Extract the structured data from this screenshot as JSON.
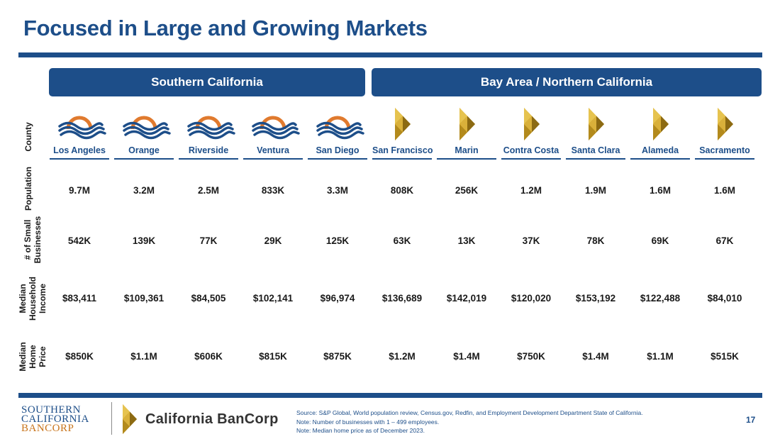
{
  "title": "Focused in Large and Growing Markets",
  "regions": {
    "southern": "Southern California",
    "northern": "Bay Area / Northern California"
  },
  "row_labels": {
    "county": "County",
    "population": "Population",
    "small_businesses_line1": "# of Small",
    "small_businesses_line2": "Businesses",
    "income_line1": "Median",
    "income_line2": "Household",
    "income_line3": "Income",
    "home_line1": "Median",
    "home_line2": "Home",
    "home_line3": "Price"
  },
  "counties": [
    {
      "name": "Los Angeles",
      "region": "southern",
      "population": "9.7M",
      "small_businesses": "542K",
      "median_income": "$83,411",
      "median_home_price": "$850K"
    },
    {
      "name": "Orange",
      "region": "southern",
      "population": "3.2M",
      "small_businesses": "139K",
      "median_income": "$109,361",
      "median_home_price": "$1.1M"
    },
    {
      "name": "Riverside",
      "region": "southern",
      "population": "2.5M",
      "small_businesses": "77K",
      "median_income": "$84,505",
      "median_home_price": "$606K"
    },
    {
      "name": "Ventura",
      "region": "southern",
      "population": "833K",
      "small_businesses": "29K",
      "median_income": "$102,141",
      "median_home_price": "$815K"
    },
    {
      "name": "San Diego",
      "region": "southern",
      "population": "3.3M",
      "small_businesses": "125K",
      "median_income": "$96,974",
      "median_home_price": "$875K"
    },
    {
      "name": "San Francisco",
      "region": "northern",
      "population": "808K",
      "small_businesses": "63K",
      "median_income": "$136,689",
      "median_home_price": "$1.2M"
    },
    {
      "name": "Marin",
      "region": "northern",
      "population": "256K",
      "small_businesses": "13K",
      "median_income": "$142,019",
      "median_home_price": "$1.4M"
    },
    {
      "name": "Contra Costa",
      "region": "northern",
      "population": "1.2M",
      "small_businesses": "37K",
      "median_income": "$120,020",
      "median_home_price": "$750K"
    },
    {
      "name": "Santa Clara",
      "region": "northern",
      "population": "1.9M",
      "small_businesses": "78K",
      "median_income": "$153,192",
      "median_home_price": "$1.4M"
    },
    {
      "name": "Alameda",
      "region": "northern",
      "population": "1.6M",
      "small_businesses": "69K",
      "median_income": "$122,488",
      "median_home_price": "$1.1M"
    },
    {
      "name": "Sacramento",
      "region": "northern",
      "population": "1.6M",
      "small_businesses": "67K",
      "median_income": "$84,010",
      "median_home_price": "$515K"
    }
  ],
  "footer": {
    "logo_sc_line1": "SOUTHERN",
    "logo_sc_line2": "CALIFORNIA",
    "logo_sc_line3": "BANCORP",
    "logo_cb": "California BanCorp",
    "sources": [
      "Source: S&P Global, World population review, Census.gov, Redfin, and Employment Development Department State of California.",
      "Note: Number of businesses with 1 – 499 employees.",
      "Note: Median home price as of December 2023."
    ],
    "page_number": "17"
  },
  "colors": {
    "brand_blue": "#1d4e89",
    "sun_orange": "#e07a2e",
    "gold": "#c9a02a"
  },
  "icons": {
    "southern": "sun-waves-icon",
    "northern": "gold-diamond-icon"
  }
}
